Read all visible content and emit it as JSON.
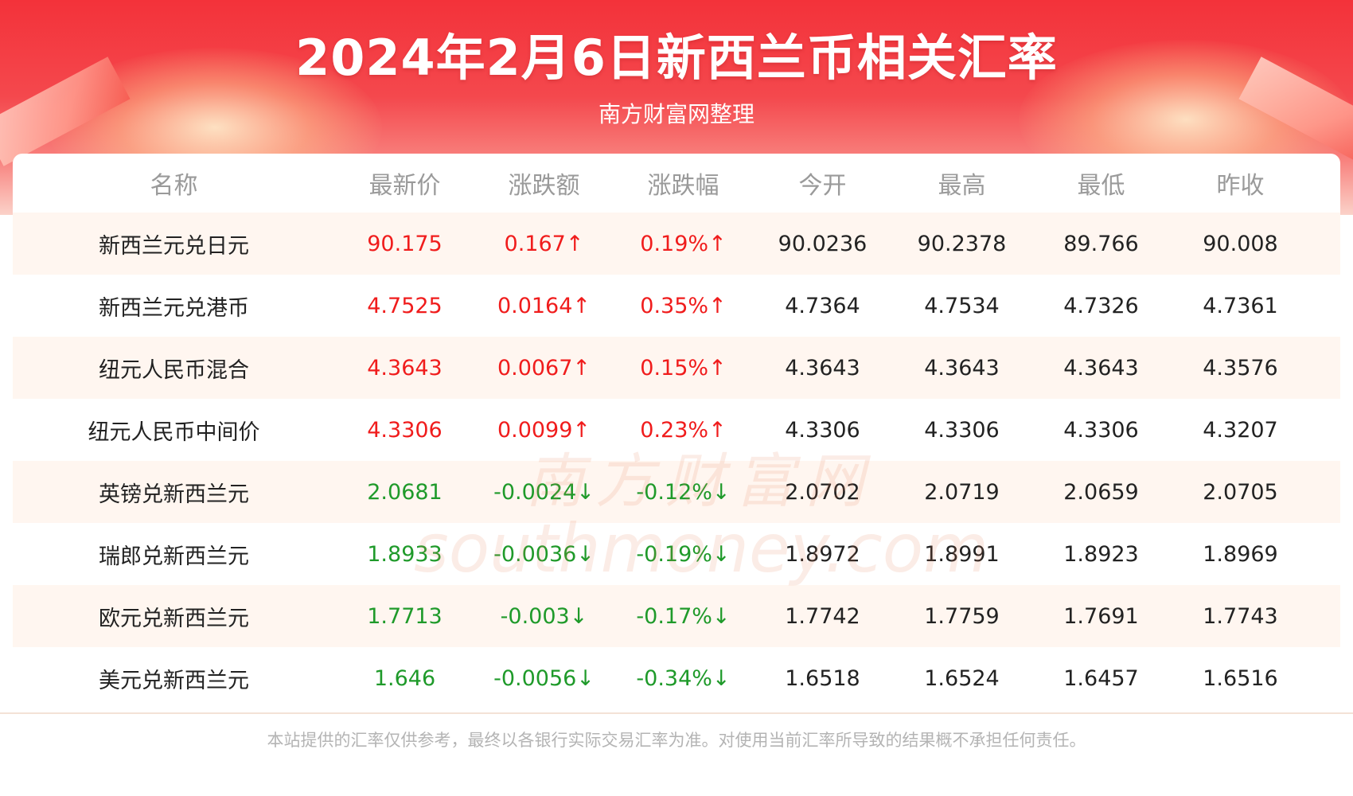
{
  "header": {
    "title": "2024年2月6日新西兰币相关汇率",
    "subtitle": "南方财富网整理"
  },
  "columns": [
    "名称",
    "最新价",
    "涨跌额",
    "涨跌幅",
    "今开",
    "最高",
    "最低",
    "昨收"
  ],
  "rows": [
    {
      "name": "新西兰元兑日元",
      "price": "90.175",
      "change": "0.167↑",
      "change_pct": "0.19%↑",
      "open": "90.0236",
      "high": "90.2378",
      "low": "89.766",
      "prev_close": "90.008",
      "trend": "up"
    },
    {
      "name": "新西兰元兑港币",
      "price": "4.7525",
      "change": "0.0164↑",
      "change_pct": "0.35%↑",
      "open": "4.7364",
      "high": "4.7534",
      "low": "4.7326",
      "prev_close": "4.7361",
      "trend": "up"
    },
    {
      "name": "纽元人民币混合",
      "price": "4.3643",
      "change": "0.0067↑",
      "change_pct": "0.15%↑",
      "open": "4.3643",
      "high": "4.3643",
      "low": "4.3643",
      "prev_close": "4.3576",
      "trend": "up"
    },
    {
      "name": "纽元人民币中间价",
      "price": "4.3306",
      "change": "0.0099↑",
      "change_pct": "0.23%↑",
      "open": "4.3306",
      "high": "4.3306",
      "low": "4.3306",
      "prev_close": "4.3207",
      "trend": "up"
    },
    {
      "name": "英镑兑新西兰元",
      "price": "2.0681",
      "change": "-0.0024↓",
      "change_pct": "-0.12%↓",
      "open": "2.0702",
      "high": "2.0719",
      "low": "2.0659",
      "prev_close": "2.0705",
      "trend": "down"
    },
    {
      "name": "瑞郎兑新西兰元",
      "price": "1.8933",
      "change": "-0.0036↓",
      "change_pct": "-0.19%↓",
      "open": "1.8972",
      "high": "1.8991",
      "low": "1.8923",
      "prev_close": "1.8969",
      "trend": "down"
    },
    {
      "name": "欧元兑新西兰元",
      "price": "1.7713",
      "change": "-0.003↓",
      "change_pct": "-0.17%↓",
      "open": "1.7742",
      "high": "1.7759",
      "low": "1.7691",
      "prev_close": "1.7743",
      "trend": "down"
    },
    {
      "name": "美元兑新西兰元",
      "price": "1.646",
      "change": "-0.0056↓",
      "change_pct": "-0.34%↓",
      "open": "1.6518",
      "high": "1.6524",
      "low": "1.6457",
      "prev_close": "1.6516",
      "trend": "down"
    }
  ],
  "watermark": {
    "cn": "南方财富网",
    "en": "southmoney.com"
  },
  "footer": {
    "disclaimer": "本站提供的汇率仅供参考，最终以各银行实际交易汇率为准。对使用当前汇率所导致的结果概不承担任何责任。"
  },
  "colors": {
    "up": "#f01c1c",
    "down": "#1f9a2a",
    "banner": "#f3323a",
    "alt_row": "#fff6f0"
  }
}
